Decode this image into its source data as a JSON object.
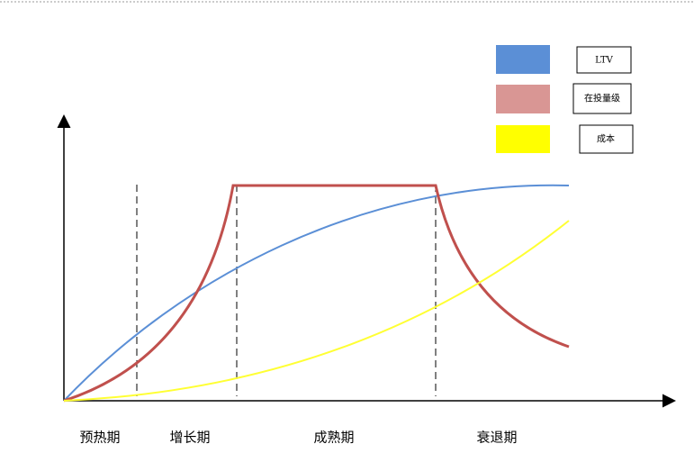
{
  "legend": [
    {
      "label": "LTV"
    },
    {
      "label": "在投量级"
    },
    {
      "label": "成本"
    }
  ],
  "phases": [
    "预热期",
    "增长期",
    "成熟期",
    "衰退期"
  ]
}
